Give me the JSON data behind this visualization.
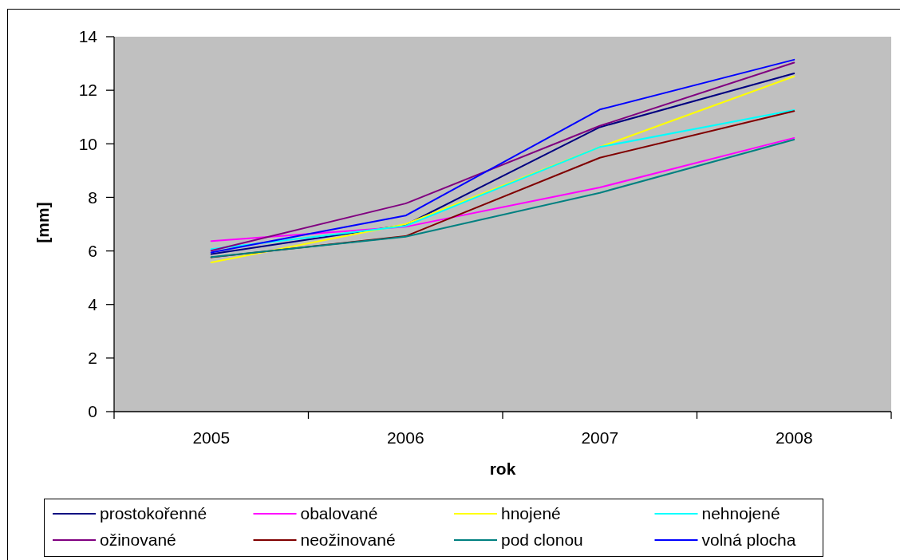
{
  "chart_data": {
    "type": "line",
    "xlabel": "rok",
    "ylabel": "[mm]",
    "categories": [
      "2005",
      "2006",
      "2007",
      "2008"
    ],
    "ylim": [
      0,
      14
    ],
    "yticks": [
      0,
      2,
      4,
      6,
      8,
      10,
      12,
      14
    ],
    "legend": "bottom",
    "series": [
      {
        "name": "prostokořenné",
        "color": "#000080",
        "values": [
          5.88,
          6.97,
          10.62,
          12.63
        ]
      },
      {
        "name": "obalované",
        "color": "#ff00ff",
        "values": [
          6.37,
          6.9,
          8.37,
          10.22
        ]
      },
      {
        "name": "hnojené",
        "color": "#ffff00",
        "values": [
          5.57,
          7.0,
          9.88,
          12.52
        ]
      },
      {
        "name": "nehnojené",
        "color": "#00ffff",
        "values": [
          6.07,
          6.93,
          9.88,
          11.26
        ]
      },
      {
        "name": "ožinované",
        "color": "#800080",
        "values": [
          6.01,
          7.77,
          10.67,
          13.03
        ]
      },
      {
        "name": "neožinované",
        "color": "#800000",
        "values": [
          5.76,
          6.55,
          9.48,
          11.22
        ]
      },
      {
        "name": "pod clonou",
        "color": "#008080",
        "values": [
          5.77,
          6.53,
          8.17,
          10.16
        ]
      },
      {
        "name": "volná plocha",
        "color": "#0000ff",
        "values": [
          5.94,
          7.32,
          11.28,
          13.14
        ]
      }
    ]
  }
}
